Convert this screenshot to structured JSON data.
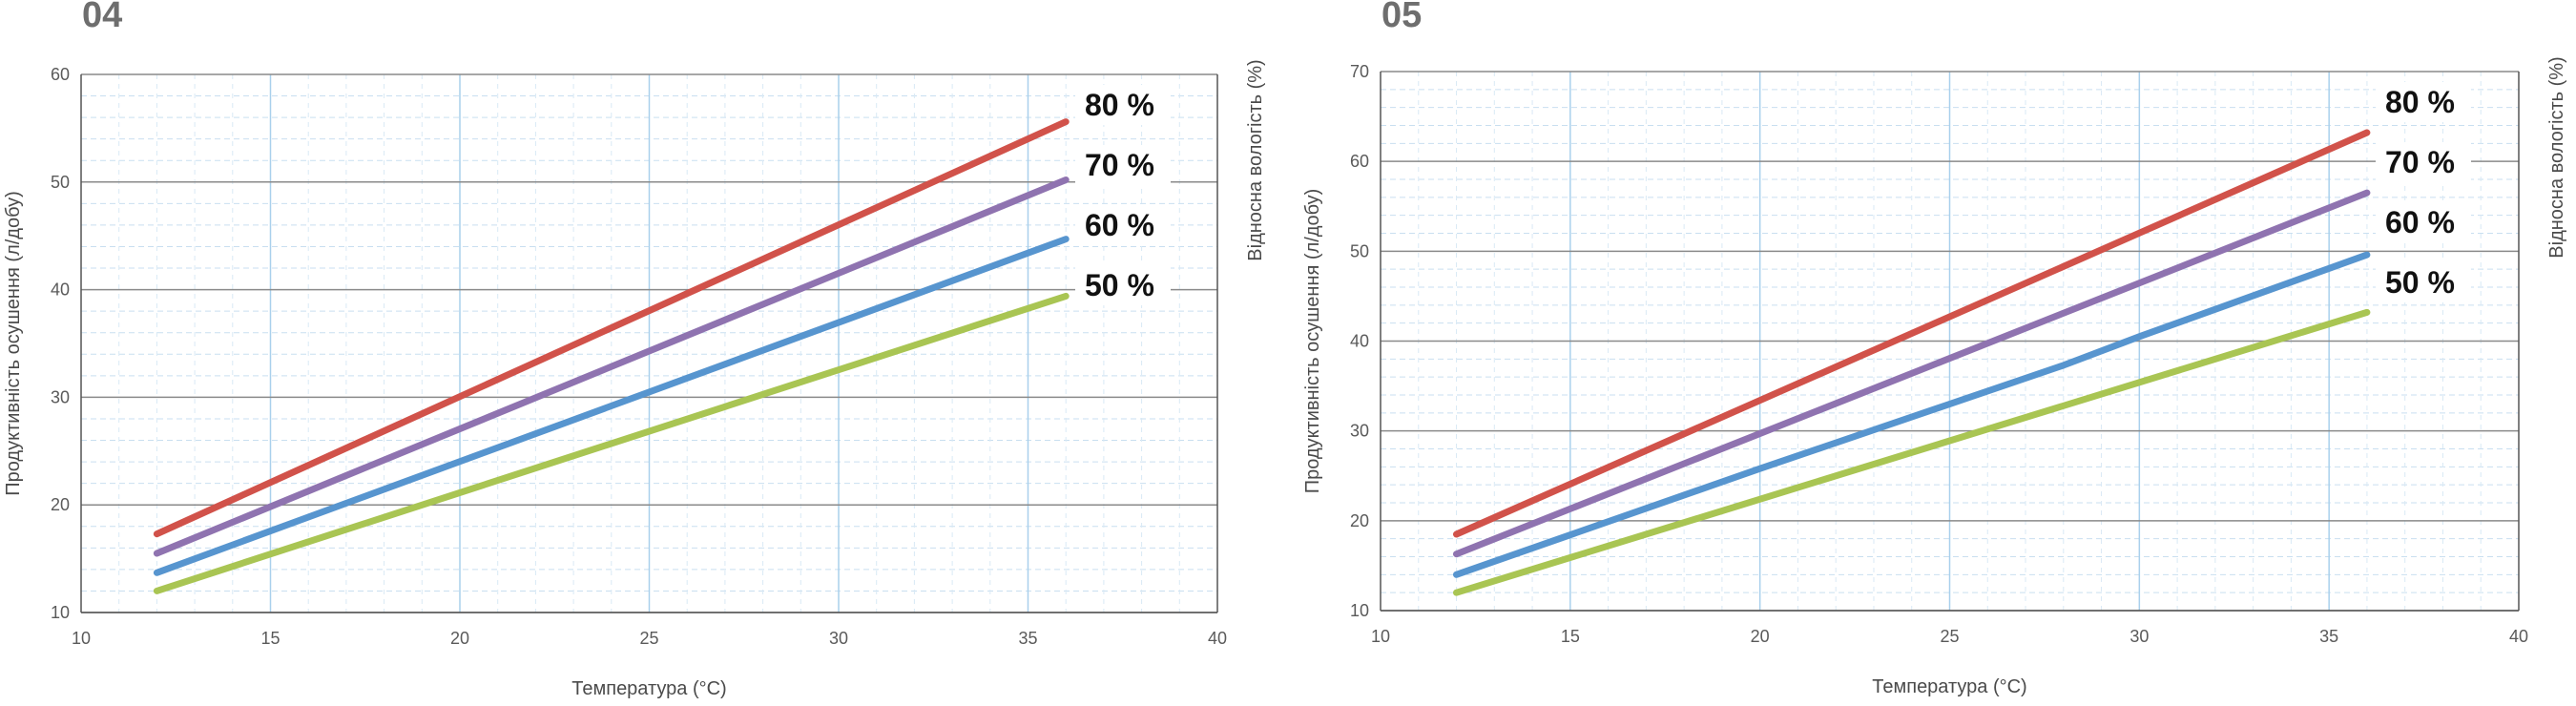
{
  "charts": [
    {
      "id_label": "04",
      "chart_data": {
        "type": "line",
        "xlabel": "Температура (°C)",
        "ylabel": "Продуктивність осушення (л/добу)",
        "right_label": "Відносна вологість (%)",
        "xlim": [
          10,
          40
        ],
        "ylim": [
          10,
          60
        ],
        "xticks": [
          10,
          15,
          20,
          25,
          30,
          35,
          40
        ],
        "yticks": [
          10,
          20,
          30,
          40,
          50,
          60
        ],
        "grid": true,
        "series": [
          {
            "name": "80 %",
            "color": "#d1524a",
            "points": [
              [
                12,
                17.3
              ],
              [
                36,
                55.6
              ]
            ]
          },
          {
            "name": "70 %",
            "color": "#8f73b0",
            "points": [
              [
                12,
                15.5
              ],
              [
                36,
                50.2
              ]
            ]
          },
          {
            "name": "60 %",
            "color": "#5795cf",
            "points": [
              [
                12,
                13.7
              ],
              [
                36,
                44.7
              ]
            ]
          },
          {
            "name": "50 %",
            "color": "#a9c553",
            "points": [
              [
                12,
                12.0
              ],
              [
                36,
                39.4
              ]
            ]
          }
        ]
      }
    },
    {
      "id_label": "05",
      "chart_data": {
        "type": "line",
        "xlabel": "Температура (°C)",
        "ylabel": "Продуктивність осушення (л/добу)",
        "right_label": "Відносна вологість (%)",
        "xlim": [
          10,
          40
        ],
        "ylim": [
          10,
          70
        ],
        "xticks": [
          10,
          15,
          20,
          25,
          30,
          35,
          40
        ],
        "yticks": [
          10,
          20,
          30,
          40,
          50,
          60,
          70
        ],
        "grid": true,
        "series": [
          {
            "name": "80 %",
            "color": "#d1524a",
            "points": [
              [
                12,
                18.5
              ],
              [
                36,
                63.2
              ]
            ]
          },
          {
            "name": "70 %",
            "color": "#8f73b0",
            "points": [
              [
                12,
                16.3
              ],
              [
                36,
                56.5
              ]
            ]
          },
          {
            "name": "60 %",
            "color": "#5795cf",
            "points": [
              [
                12,
                14.0
              ],
              [
                20,
                25.8
              ],
              [
                28,
                37.3
              ],
              [
                30,
                40.5
              ],
              [
                36,
                49.6
              ]
            ]
          },
          {
            "name": "50 %",
            "color": "#a9c553",
            "points": [
              [
                12,
                12.0
              ],
              [
                36,
                43.2
              ]
            ]
          }
        ]
      }
    }
  ]
}
